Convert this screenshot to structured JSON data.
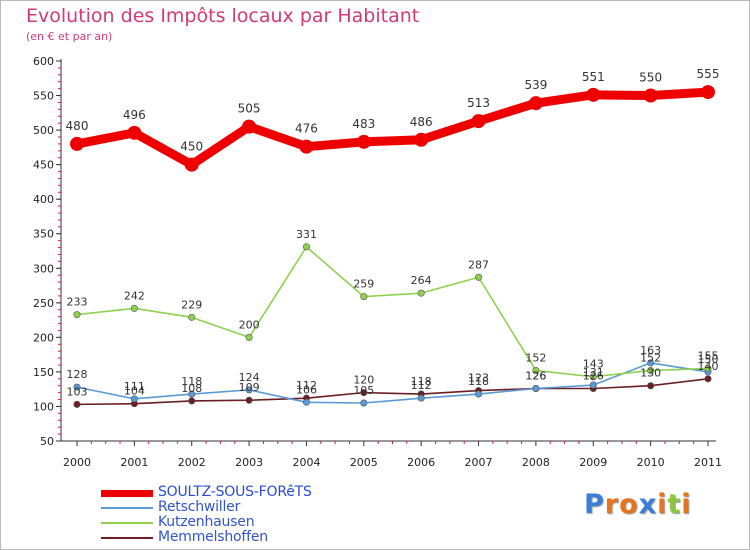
{
  "chart_data": {
    "type": "line",
    "title": "Evolution des Impôts locaux par Habitant",
    "subtitle": "(en € et par an)",
    "x": [
      "2000",
      "2001",
      "2002",
      "2003",
      "2004",
      "2005",
      "2006",
      "2007",
      "2008",
      "2009",
      "2010",
      "2011"
    ],
    "ylim": [
      50,
      600
    ],
    "yticks": [
      50,
      100,
      150,
      200,
      250,
      300,
      350,
      400,
      450,
      500,
      550,
      600
    ],
    "grid": false,
    "legend_position": "bottom-left",
    "series": [
      {
        "name": "SOULTZ-SOUS-FORêTS",
        "color": "#ee0000",
        "emphasis": true,
        "values": [
          480,
          496,
          450,
          505,
          476,
          483,
          486,
          513,
          539,
          551,
          550,
          555
        ]
      },
      {
        "name": "Retschwiller",
        "color": "#5b9bd5",
        "emphasis": false,
        "values": [
          128,
          111,
          118,
          124,
          106,
          105,
          112,
          118,
          126,
          131,
          163,
          150
        ]
      },
      {
        "name": "Kutzenhausen",
        "color": "#8fd14f",
        "emphasis": false,
        "values": [
          233,
          242,
          229,
          200,
          331,
          259,
          264,
          287,
          152,
          143,
          152,
          155
        ]
      },
      {
        "name": "Memmelshoffen",
        "color": "#6b1e24",
        "emphasis": false,
        "values": [
          103,
          104,
          108,
          109,
          112,
          120,
          118,
          123,
          126,
          126,
          130,
          140
        ]
      }
    ]
  },
  "brand": {
    "letters": [
      "P",
      "r",
      "o",
      "x",
      "i",
      "t",
      "i"
    ],
    "colors": [
      "#3a7fd5",
      "#e8731a",
      "#e8731a",
      "#3a7fd5",
      "#e8731a",
      "#8cc63f",
      "#e8731a"
    ]
  }
}
